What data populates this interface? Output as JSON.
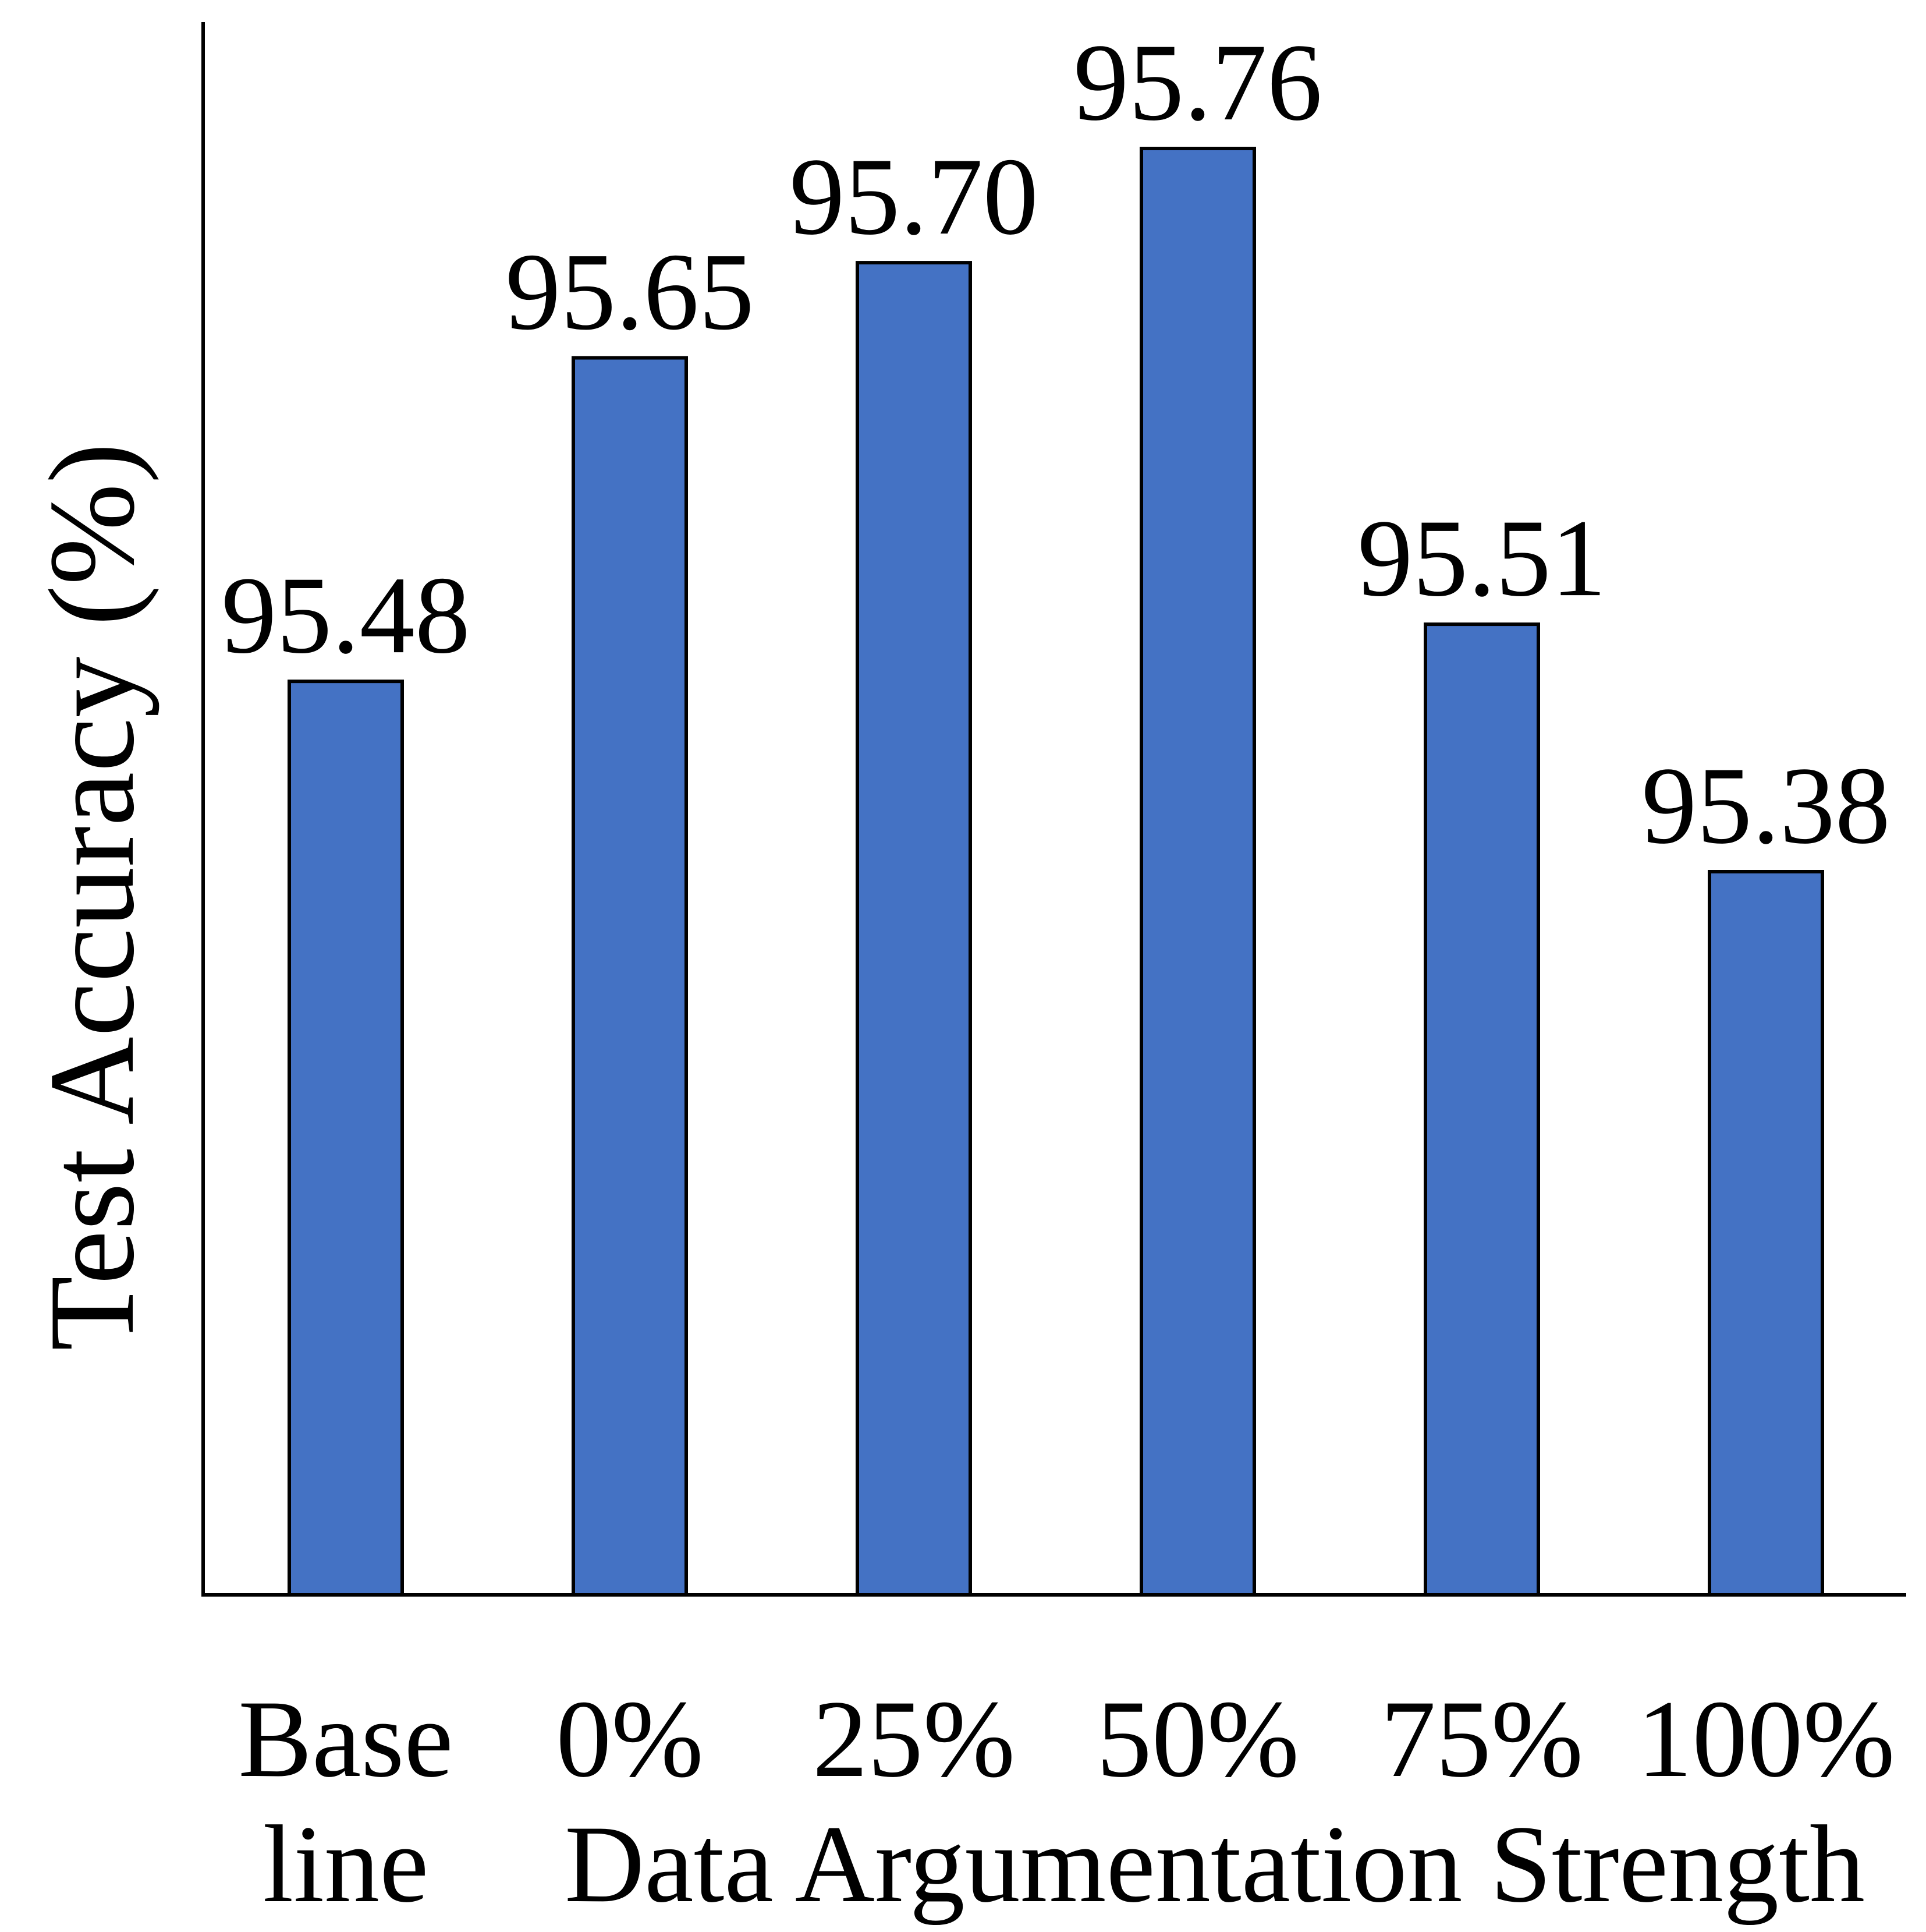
{
  "chart_data": {
    "type": "bar",
    "categories": [
      "Base line",
      "0%",
      "25%",
      "50%",
      "75%",
      "100%"
    ],
    "tick_labels": [
      [
        "Base",
        "line"
      ],
      [
        "0%"
      ],
      [
        "25%"
      ],
      [
        "50%"
      ],
      [
        "75%"
      ],
      [
        "100%"
      ]
    ],
    "values": [
      95.48,
      95.65,
      95.7,
      95.76,
      95.51,
      95.38
    ],
    "data_labels": [
      "95.48",
      "95.65",
      "95.70",
      "95.76",
      "95.51",
      "95.38"
    ],
    "title": "",
    "xlabel": "Data Argumentation Strength",
    "ylabel": "Test Accuracy (%)",
    "ylim": [
      95.0,
      95.81
    ],
    "grid": false,
    "legend": "none",
    "bar_color": "#4472C4",
    "bar_edge_color": "#000000"
  }
}
